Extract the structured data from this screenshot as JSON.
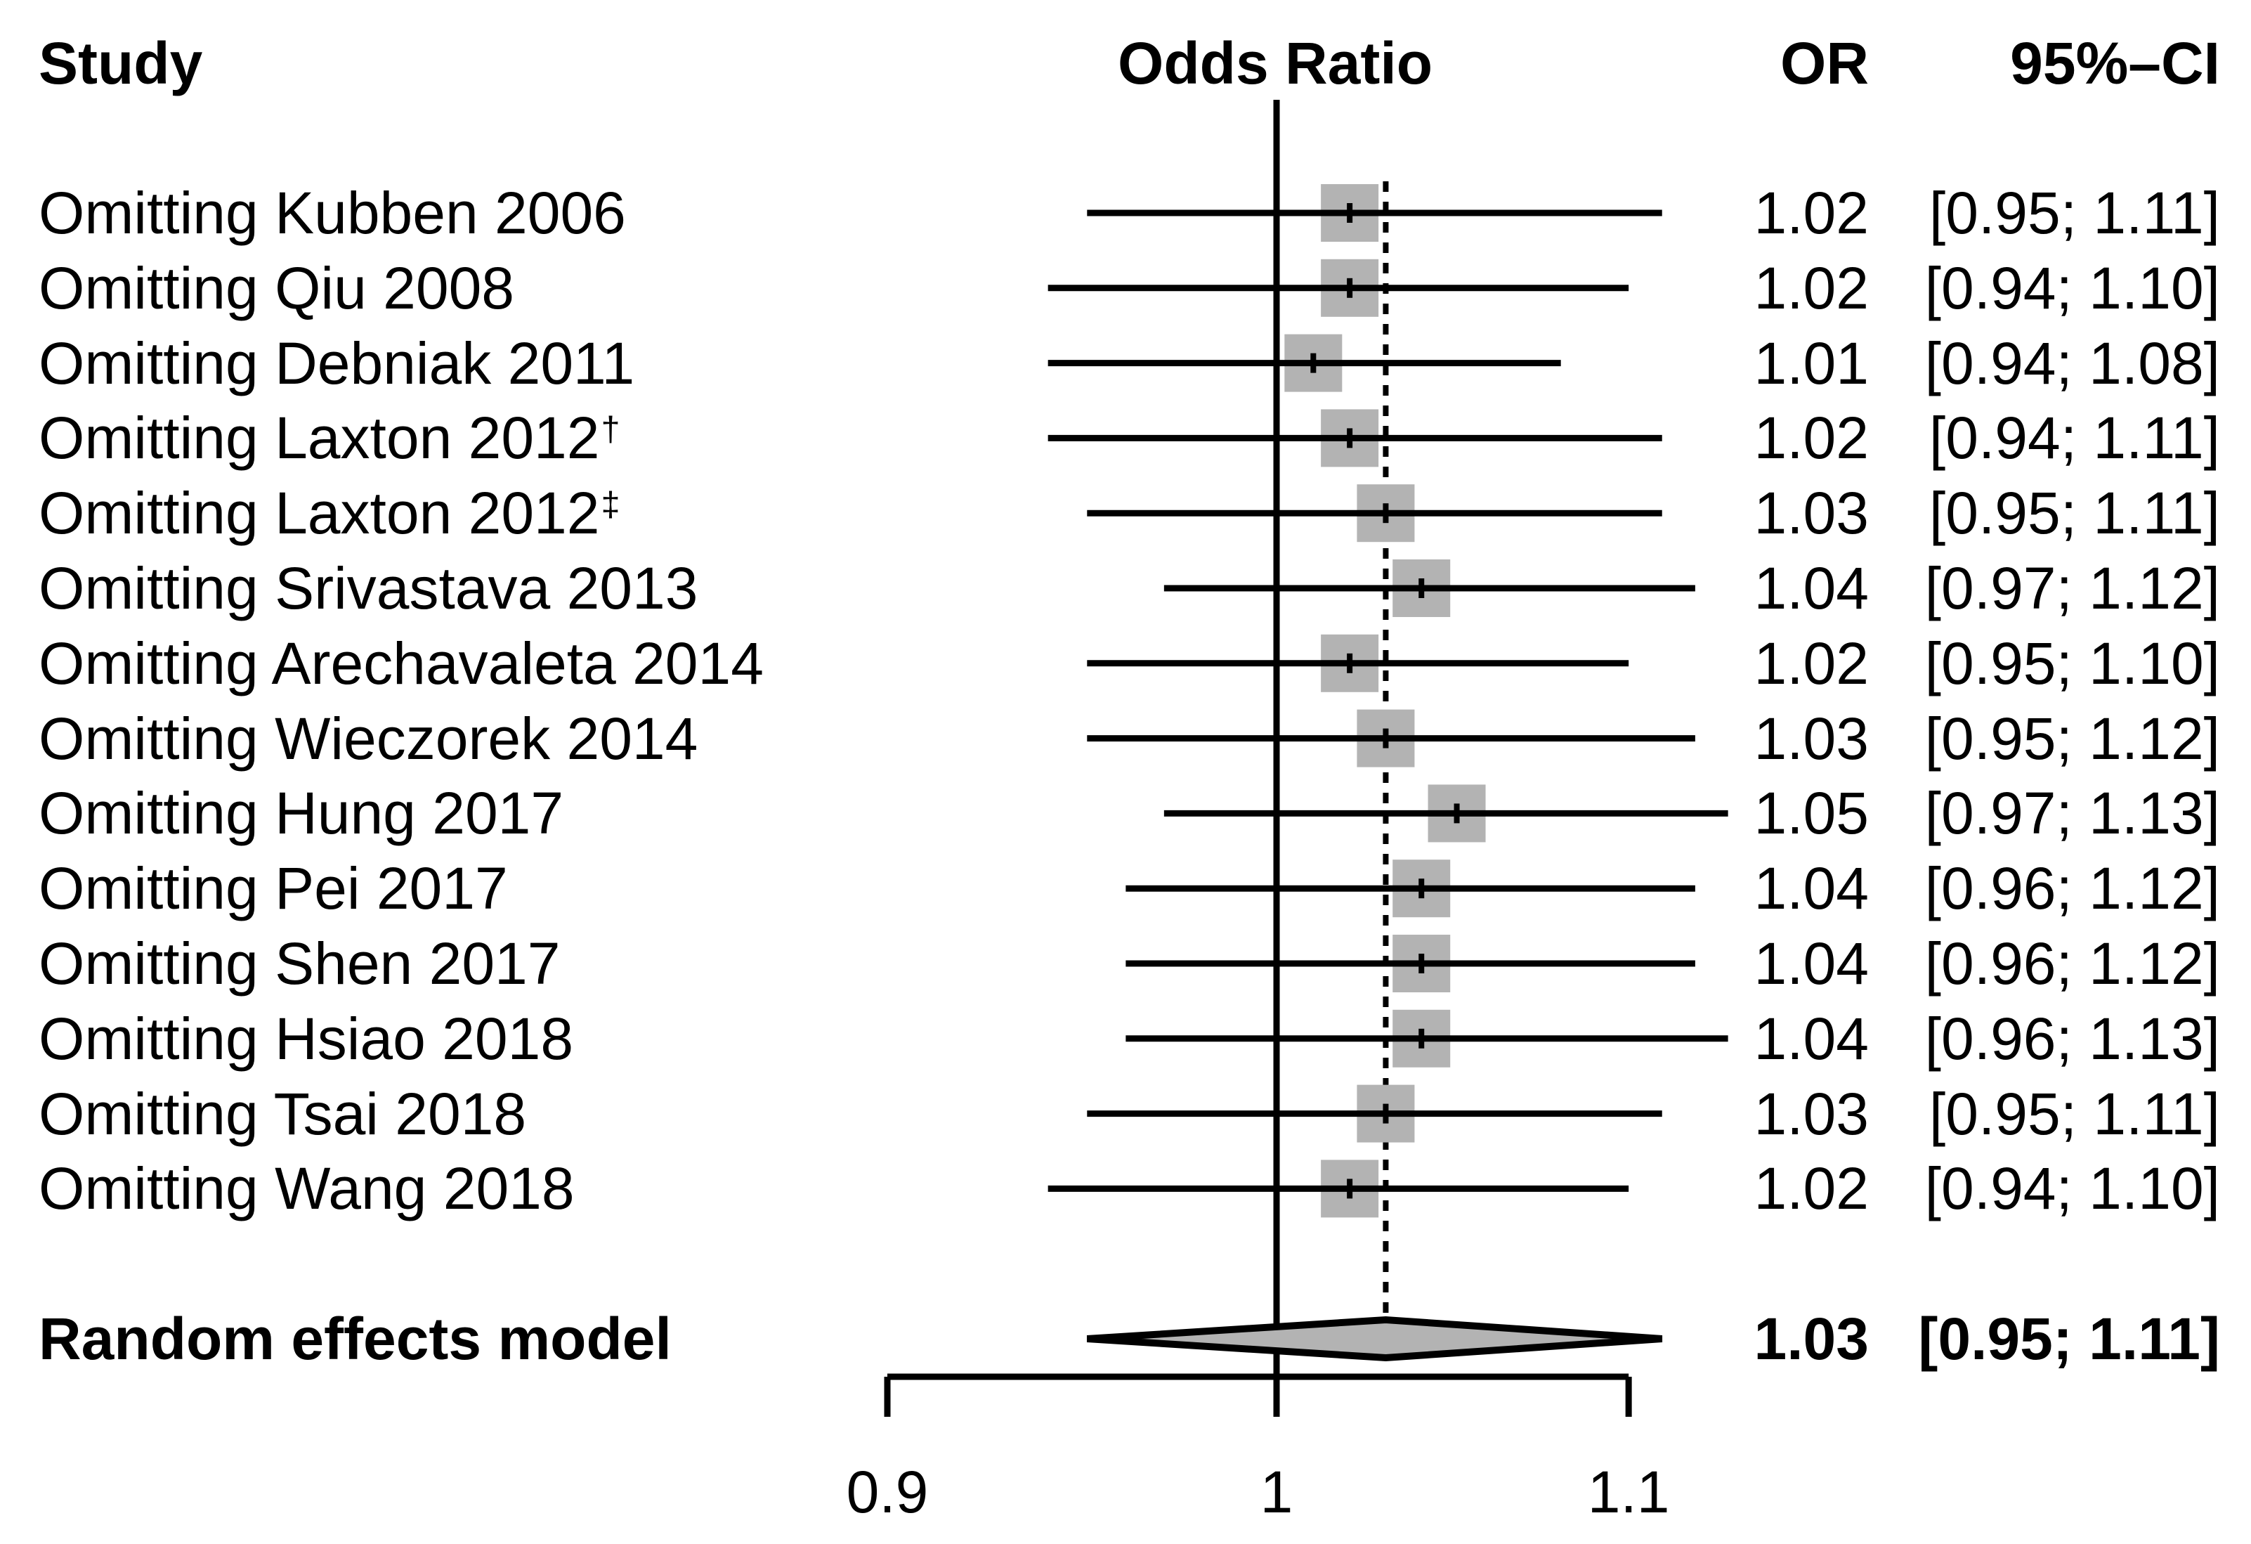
{
  "colors": {
    "background": "#ffffff",
    "text": "#000000",
    "line": "#000000",
    "square_fill": "#b3b3b3",
    "diamond_fill": "#b3b3b3",
    "diamond_border": "#000000"
  },
  "chart_data": {
    "type": "forest",
    "x_scale": "log",
    "columns": {
      "study": "Study",
      "plot": "Odds Ratio",
      "or": "OR",
      "ci": "95%–CI"
    },
    "reference_value": 1,
    "x_ticks": [
      {
        "value": 0.9,
        "label": "0.9"
      },
      {
        "value": 1.0,
        "label": "1"
      },
      {
        "value": 1.1,
        "label": "1.1"
      }
    ],
    "studies": [
      {
        "label": "Omitting Kubben 2006",
        "sup": "",
        "or": 1.02,
        "ci_low": 0.95,
        "ci_high": 1.11,
        "or_text": "1.02",
        "ci_text": "[0.95; 1.11]"
      },
      {
        "label": "Omitting Qiu 2008",
        "sup": "",
        "or": 1.02,
        "ci_low": 0.94,
        "ci_high": 1.1,
        "or_text": "1.02",
        "ci_text": "[0.94; 1.10]"
      },
      {
        "label": "Omitting Debniak 2011",
        "sup": "",
        "or": 1.01,
        "ci_low": 0.94,
        "ci_high": 1.08,
        "or_text": "1.01",
        "ci_text": "[0.94; 1.08]"
      },
      {
        "label": "Omitting Laxton 2012",
        "sup": "†",
        "or": 1.02,
        "ci_low": 0.94,
        "ci_high": 1.11,
        "or_text": "1.02",
        "ci_text": "[0.94; 1.11]"
      },
      {
        "label": "Omitting Laxton 2012",
        "sup": "‡",
        "or": 1.03,
        "ci_low": 0.95,
        "ci_high": 1.11,
        "or_text": "1.03",
        "ci_text": "[0.95; 1.11]"
      },
      {
        "label": "Omitting Srivastava 2013",
        "sup": "",
        "or": 1.04,
        "ci_low": 0.97,
        "ci_high": 1.12,
        "or_text": "1.04",
        "ci_text": "[0.97; 1.12]"
      },
      {
        "label": "Omitting Arechavaleta 2014",
        "sup": "",
        "or": 1.02,
        "ci_low": 0.95,
        "ci_high": 1.1,
        "or_text": "1.02",
        "ci_text": "[0.95; 1.10]"
      },
      {
        "label": "Omitting Wieczorek 2014",
        "sup": "",
        "or": 1.03,
        "ci_low": 0.95,
        "ci_high": 1.12,
        "or_text": "1.03",
        "ci_text": "[0.95; 1.12]"
      },
      {
        "label": "Omitting Hung 2017",
        "sup": "",
        "or": 1.05,
        "ci_low": 0.97,
        "ci_high": 1.13,
        "or_text": "1.05",
        "ci_text": "[0.97; 1.13]"
      },
      {
        "label": "Omitting Pei 2017",
        "sup": "",
        "or": 1.04,
        "ci_low": 0.96,
        "ci_high": 1.12,
        "or_text": "1.04",
        "ci_text": "[0.96; 1.12]"
      },
      {
        "label": "Omitting Shen 2017",
        "sup": "",
        "or": 1.04,
        "ci_low": 0.96,
        "ci_high": 1.12,
        "or_text": "1.04",
        "ci_text": "[0.96; 1.12]"
      },
      {
        "label": "Omitting Hsiao 2018",
        "sup": "",
        "or": 1.04,
        "ci_low": 0.96,
        "ci_high": 1.13,
        "or_text": "1.04",
        "ci_text": "[0.96; 1.13]"
      },
      {
        "label": "Omitting Tsai 2018",
        "sup": "",
        "or": 1.03,
        "ci_low": 0.95,
        "ci_high": 1.11,
        "or_text": "1.03",
        "ci_text": "[0.95; 1.11]"
      },
      {
        "label": "Omitting Wang 2018",
        "sup": "",
        "or": 1.02,
        "ci_low": 0.94,
        "ci_high": 1.1,
        "or_text": "1.02",
        "ci_text": "[0.94; 1.10]"
      }
    ],
    "summary": {
      "label": "Random effects model",
      "or": 1.03,
      "ci_low": 0.95,
      "ci_high": 1.11,
      "or_text": "1.03",
      "ci_text": "[0.95; 1.11]"
    }
  }
}
